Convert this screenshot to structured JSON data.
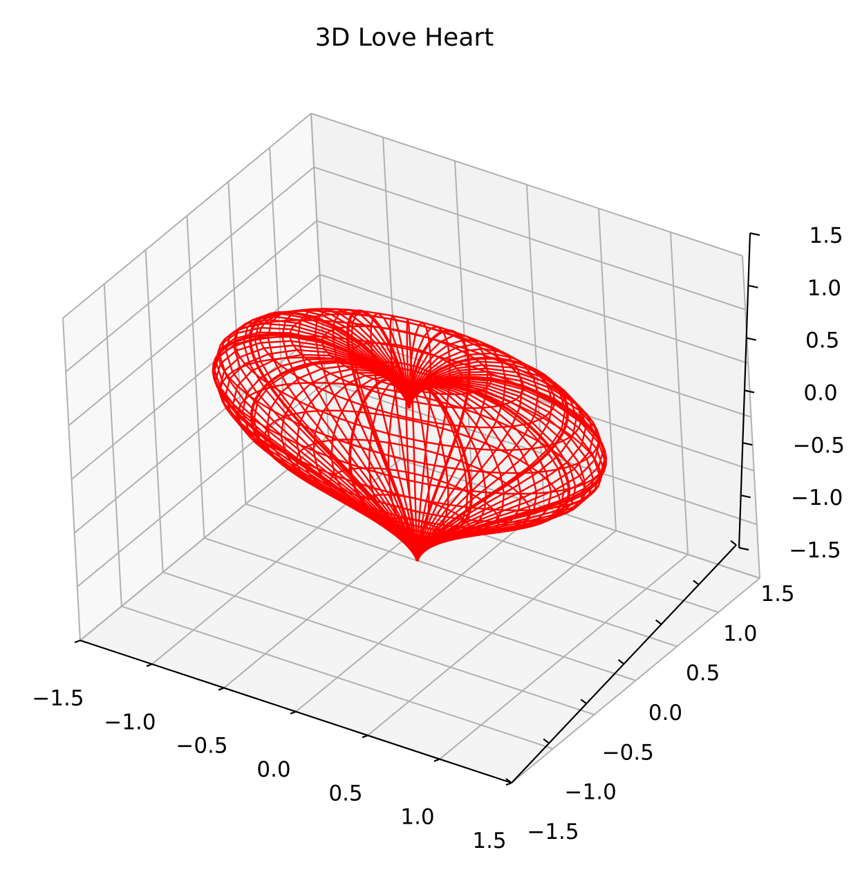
{
  "chart_data": {
    "type": "wireframe-3d",
    "title": "3D Love Heart",
    "xlabel": "",
    "ylabel": "",
    "zlabel": "",
    "xlim": [
      -1.5,
      1.5
    ],
    "ylim": [
      -1.5,
      1.5
    ],
    "zlim": [
      -1.5,
      1.5
    ],
    "ticks": [
      -1.5,
      -1.0,
      -0.5,
      0.0,
      0.5,
      1.0,
      1.5
    ],
    "x_tick_labels": [
      "−1.5",
      "−1.0",
      "−0.5",
      "0.0",
      "0.5",
      "1.0",
      "1.5"
    ],
    "y_tick_labels": [
      "−1.5",
      "−1.0",
      "−0.5",
      "0.0",
      "0.5",
      "1.0",
      "1.5"
    ],
    "z_tick_labels": [
      "−1.5",
      "−1.0",
      "−0.5",
      "0.0",
      "0.5",
      "1.0",
      "1.5"
    ],
    "grid": true,
    "series": [
      {
        "surface": "heart",
        "x_range": [
          -1.3,
          1.3
        ],
        "y_range": [
          -0.8,
          0.8
        ],
        "z_range": [
          -1.1,
          1.1
        ],
        "color": "#ff0000"
      }
    ],
    "pane_colors": {
      "x_pane": "#f2f2f2",
      "y_pane": "#f8f8f8",
      "z_pane": "#f4f4f4",
      "grid": "#b0b0b0",
      "axis": "#000000"
    }
  }
}
